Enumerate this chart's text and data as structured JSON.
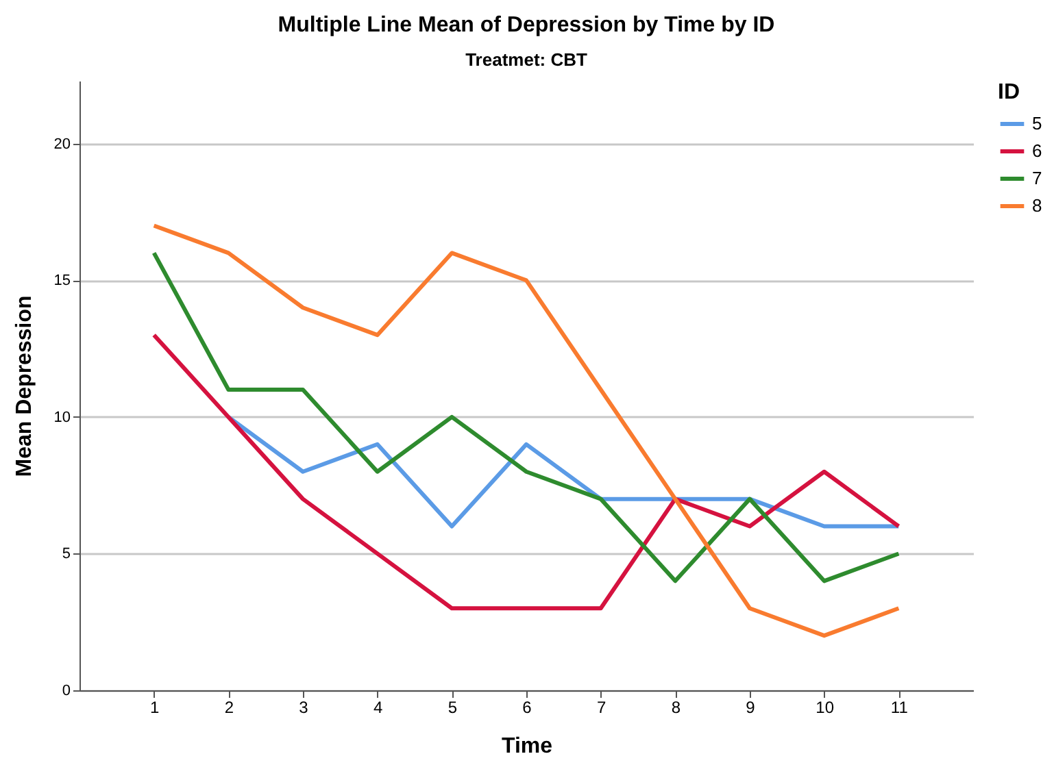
{
  "chart_data": {
    "type": "line",
    "title": "Multiple Line Mean of Depression by Time by ID",
    "subtitle": "Treatmet: CBT",
    "xlabel": "Time",
    "ylabel": "Mean Depression",
    "legend_title": "ID",
    "categories": [
      "1",
      "2",
      "3",
      "4",
      "5",
      "6",
      "7",
      "8",
      "9",
      "10",
      "11"
    ],
    "series": [
      {
        "name": "5",
        "color": "#5b9be6",
        "values": [
          null,
          10,
          8,
          9,
          6,
          9,
          7,
          7,
          7,
          6,
          6
        ]
      },
      {
        "name": "6",
        "color": "#d5123f",
        "values": [
          13,
          10,
          7,
          5,
          3,
          3,
          3,
          7,
          6,
          8,
          6
        ]
      },
      {
        "name": "7",
        "color": "#2e8b2e",
        "values": [
          16,
          11,
          11,
          8,
          10,
          8,
          7,
          4,
          7,
          4,
          5
        ]
      },
      {
        "name": "8",
        "color": "#f97b2f",
        "values": [
          17,
          16,
          14,
          13,
          16,
          15,
          11,
          7,
          3,
          2,
          3
        ]
      }
    ],
    "ylim": [
      0,
      22.3
    ],
    "yticks": [
      0,
      5,
      10,
      15,
      20
    ],
    "grid": "y",
    "legend": "top right",
    "marker": "none",
    "line_style": "solid"
  }
}
